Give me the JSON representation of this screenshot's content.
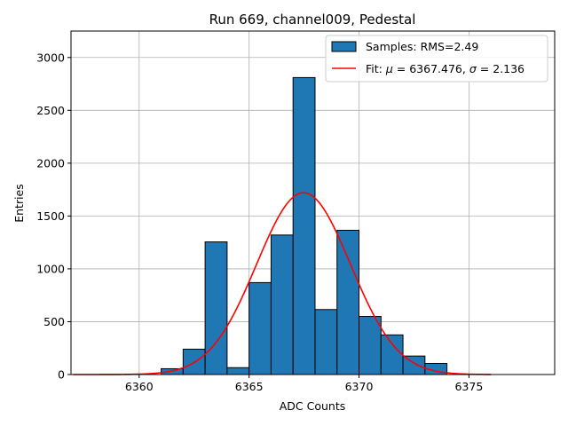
{
  "chart_data": {
    "type": "bar",
    "title": "Run 669, channel009, Pedestal",
    "xlabel": "ADC Counts",
    "ylabel": "Entries",
    "xlim": [
      6356.9,
      6378.9
    ],
    "ylim": [
      0,
      3250
    ],
    "xticks": [
      6360,
      6365,
      6370,
      6375
    ],
    "yticks": [
      0,
      500,
      1000,
      1500,
      2000,
      2500,
      3000
    ],
    "grid": true,
    "legend_position": "top-right",
    "colors": {
      "bars": "#1f77b4",
      "bar_edge": "#000000",
      "fit": "#ff0000",
      "grid": "#b0b0b0"
    },
    "histogram": {
      "name": "Samples: RMS=2.49",
      "bin_edges": [
        6361,
        6362,
        6363,
        6364,
        6365,
        6366,
        6367,
        6368,
        6369,
        6370,
        6371,
        6372,
        6373,
        6374
      ],
      "counts": [
        55,
        240,
        1255,
        65,
        870,
        1320,
        2810,
        615,
        1365,
        550,
        375,
        175,
        105
      ]
    },
    "fit": {
      "name_prefix": "Fit: ",
      "mu_value": "6367.476",
      "sigma_value": "2.136",
      "mu": 6367.476,
      "sigma": 2.136,
      "amplitude": 1720,
      "x_range": [
        6357,
        6376
      ]
    }
  }
}
